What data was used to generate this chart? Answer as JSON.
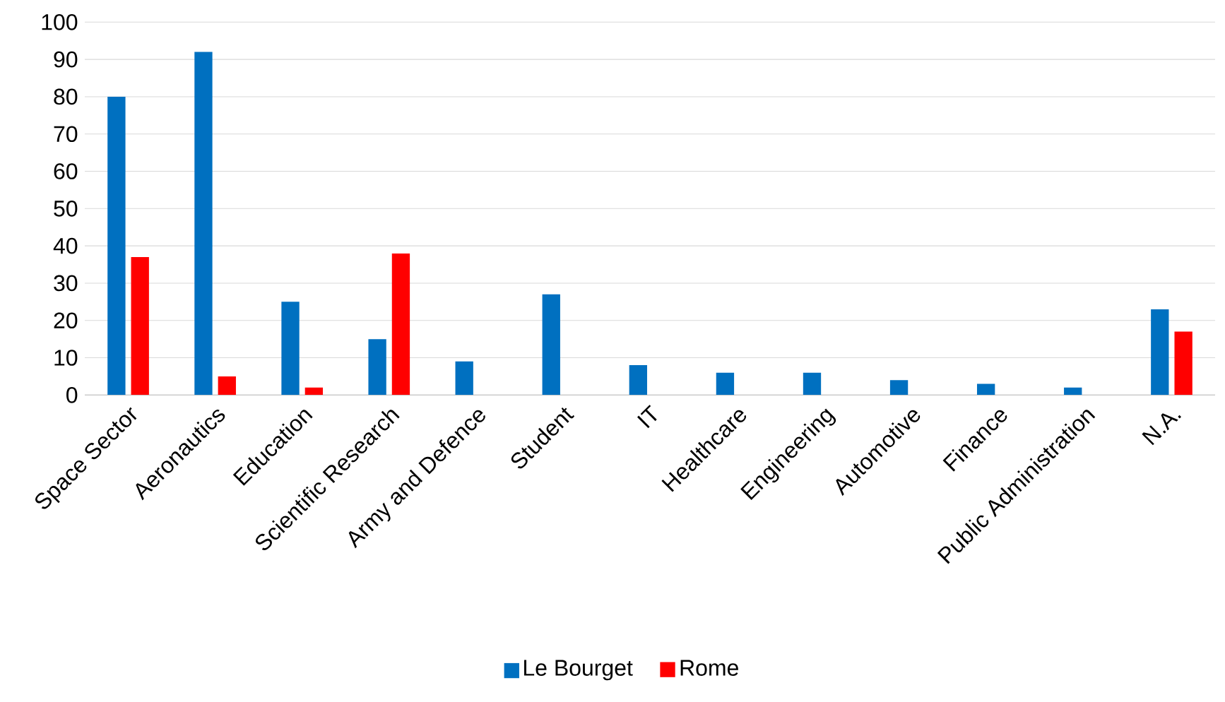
{
  "chart_data": {
    "type": "bar",
    "categories": [
      "Space Sector",
      "Aeronautics",
      "Education",
      "Scientific Research",
      "Army and Defence",
      "Student",
      "IT",
      "Healthcare",
      "Engineering",
      "Automotive",
      "Finance",
      "Public Administration",
      "N.A."
    ],
    "series": [
      {
        "name": "Le Bourget",
        "color": "#0070c0",
        "values": [
          80,
          92,
          25,
          15,
          9,
          27,
          8,
          6,
          6,
          4,
          3,
          2,
          23
        ]
      },
      {
        "name": "Rome",
        "color": "#ff0000",
        "values": [
          37,
          5,
          2,
          38,
          null,
          null,
          null,
          null,
          null,
          null,
          null,
          null,
          17
        ]
      }
    ],
    "ylim": [
      0,
      100
    ],
    "yticks": [
      0,
      10,
      20,
      30,
      40,
      50,
      60,
      70,
      80,
      90,
      100
    ],
    "grid": "y",
    "legend": "bottom"
  }
}
